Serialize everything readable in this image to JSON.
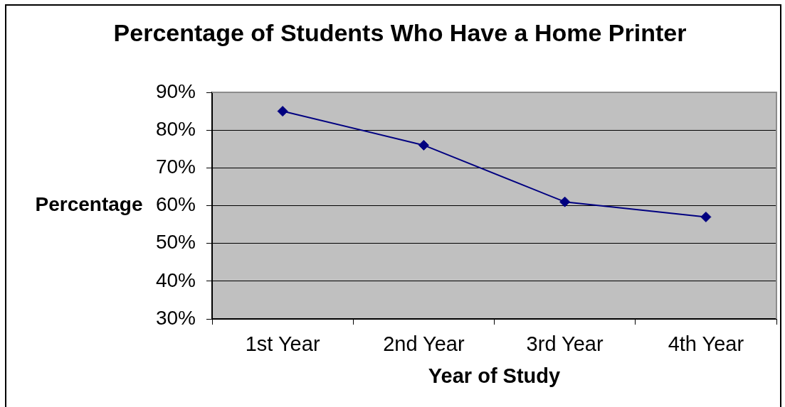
{
  "chart_data": {
    "type": "line",
    "title": "Percentage of Students Who Have a Home Printer",
    "xlabel": "Year of Study",
    "ylabel": "Percentage",
    "categories": [
      "1st Year",
      "2nd Year",
      "3rd Year",
      "4th Year"
    ],
    "series": [
      {
        "color": "#000080",
        "values": [
          85,
          76,
          61,
          57
        ]
      }
    ],
    "ylim": [
      30,
      90
    ],
    "yticks": [
      {
        "value": 30,
        "label": "30%"
      },
      {
        "value": 40,
        "label": "40%"
      },
      {
        "value": 50,
        "label": "50%"
      },
      {
        "value": 60,
        "label": "60%"
      },
      {
        "value": 70,
        "label": "70%"
      },
      {
        "value": 80,
        "label": "80%"
      },
      {
        "value": 90,
        "label": "90%"
      }
    ],
    "grid": "y",
    "marker": "diamond",
    "line_style": "solid"
  }
}
